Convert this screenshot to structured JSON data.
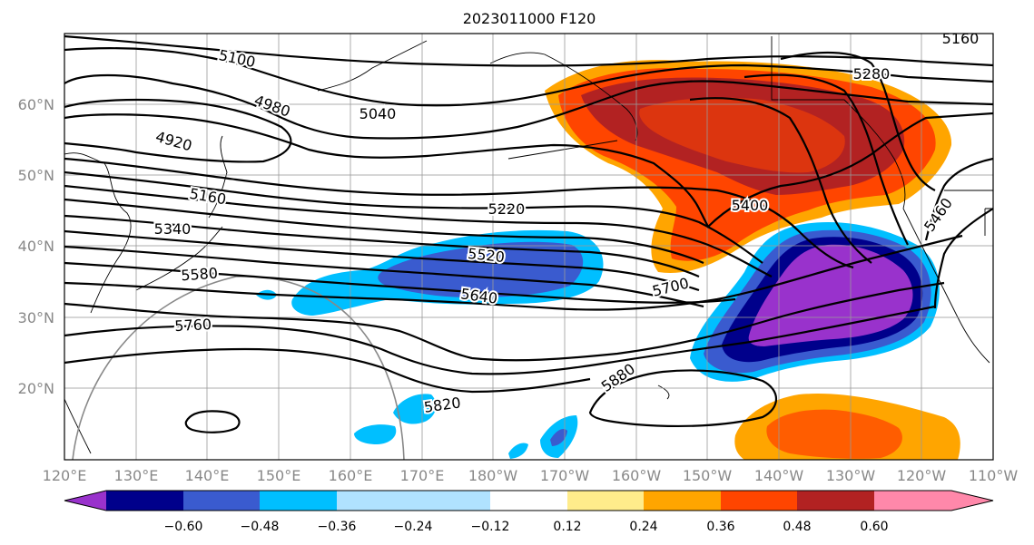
{
  "title": "2023011000 F120",
  "lat_labels": [
    "60°N",
    "50°N",
    "40°N",
    "30°N",
    "20°N"
  ],
  "lon_labels": [
    "120°E",
    "130°E",
    "140°E",
    "150°E",
    "160°E",
    "170°E",
    "180°W",
    "170°W",
    "160°W",
    "150°W",
    "140°W",
    "130°W",
    "120°W",
    "110°W"
  ],
  "contour_labels": [
    "5100",
    "4980",
    "5040",
    "4920",
    "5160",
    "5220",
    "5280",
    "5160",
    "5340",
    "5400",
    "5460",
    "5520",
    "5580",
    "5640",
    "5700",
    "5760",
    "5820",
    "5880"
  ],
  "colorbar": {
    "tick_labels": [
      "−0.60",
      "−0.48",
      "−0.36",
      "−0.24",
      "−0.12",
      "0.12",
      "0.24",
      "0.36",
      "0.48",
      "0.60"
    ],
    "colors": [
      "#9932CC",
      "#00008B",
      "#3A5BCF",
      "#00BFFF",
      "#B0E2FF",
      "#FFFFFF",
      "#FFEC8B",
      "#FFA500",
      "#FF4500",
      "#B22222",
      "#FF88AA"
    ]
  }
}
